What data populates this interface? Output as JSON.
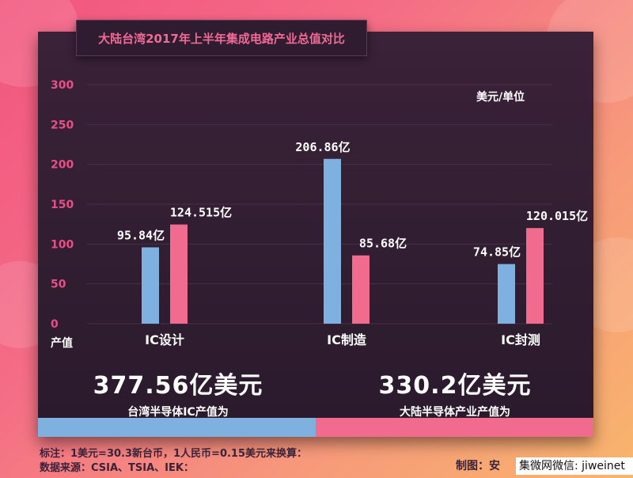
{
  "title": "大陆台湾2017年上半年集成电路产业总值对比",
  "unit_label": "美元/单位",
  "y_axis_label": "产值",
  "totals": [
    {
      "value": "377.56亿美元",
      "caption": "台湾半导体IC产值为"
    },
    {
      "value": "330.2亿美元",
      "caption": "大陆半导体产业产值为"
    }
  ],
  "footer": {
    "note_line1": "标注：1美元=30.3新台币，1人民币=0.15美元来换算：",
    "note_line2": "数据来源：CSIA、TSIA、IEK：",
    "maker": "制图：安",
    "watermark": "集微网微信: jiweinet"
  },
  "colors": {
    "taiwan": "#7fb1e0",
    "mainland": "#f16b8e",
    "panel": "#2f1c30",
    "tick": "#e84f86"
  },
  "chart_data": {
    "type": "bar",
    "categories": [
      "IC设计",
      "IC制造",
      "IC封测"
    ],
    "series": [
      {
        "values": [
          95.84,
          206.86,
          74.85
        ],
        "labels": [
          "95.84亿",
          "206.86亿",
          "74.85亿"
        ],
        "color": "#7fb1e0"
      },
      {
        "values": [
          124.515,
          85.68,
          120.015
        ],
        "labels": [
          "124.515亿",
          "85.68亿",
          "120.015亿"
        ],
        "color": "#f16b8e"
      }
    ],
    "yticks": [
      0,
      50,
      100,
      150,
      200,
      250,
      300
    ],
    "ylim": [
      0,
      300
    ],
    "grid": true
  }
}
